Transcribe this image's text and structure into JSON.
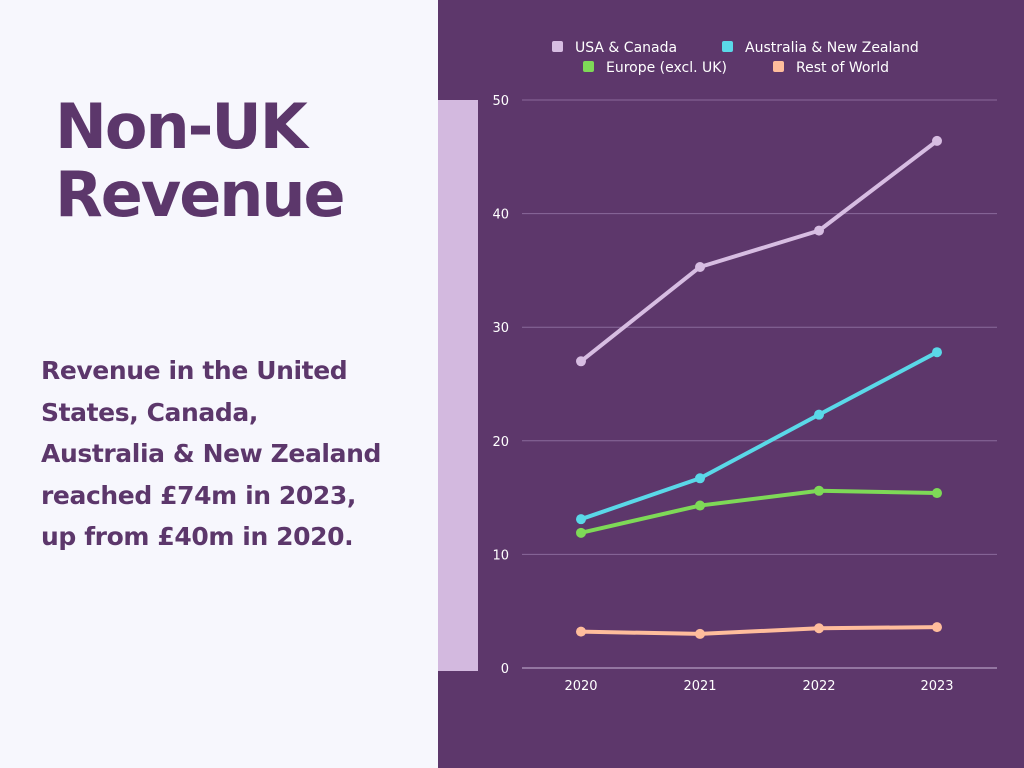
{
  "page": {
    "title_lines": [
      "Non-UK",
      "Revenue"
    ],
    "body_lines": [
      "Revenue in the United",
      "States, Canada,",
      "Australia & New Zealand",
      "reached £74m in 2023,",
      "up from £40m in 2020."
    ]
  },
  "colors": {
    "left_background": "#f7f7fd",
    "right_background": "#5d376b",
    "accent_bar": "#d3b9df",
    "heading_text": "#5c376b",
    "axis_text": "#ffffff"
  },
  "chart_data": {
    "type": "line",
    "title": "",
    "xlabel": "",
    "ylabel": "",
    "categories": [
      "2020",
      "2021",
      "2022",
      "2023"
    ],
    "ylim": [
      0,
      50
    ],
    "yticks": [
      0,
      10,
      20,
      30,
      40,
      50
    ],
    "grid": true,
    "legend_position": "top",
    "series": [
      {
        "name": "USA & Canada",
        "color": "#d7bde2",
        "values": [
          27.0,
          35.3,
          38.5,
          46.4
        ]
      },
      {
        "name": "Australia & New Zealand",
        "color": "#5ad8e8",
        "values": [
          13.1,
          16.7,
          22.3,
          27.8
        ]
      },
      {
        "name": "Europe (excl. UK)",
        "color": "#7ed957",
        "values": [
          11.9,
          14.3,
          15.6,
          15.4
        ]
      },
      {
        "name": "Rest of World",
        "color": "#ffbd9c",
        "values": [
          3.2,
          3.0,
          3.5,
          3.6
        ]
      }
    ]
  }
}
